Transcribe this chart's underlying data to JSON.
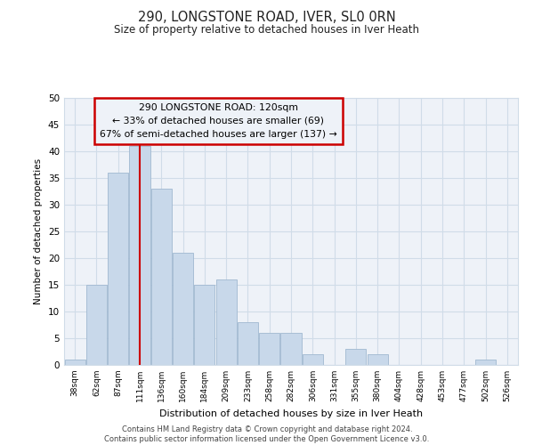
{
  "title": "290, LONGSTONE ROAD, IVER, SL0 0RN",
  "subtitle": "Size of property relative to detached houses in Iver Heath",
  "xlabel": "Distribution of detached houses by size in Iver Heath",
  "ylabel": "Number of detached properties",
  "categories": [
    "38sqm",
    "62sqm",
    "87sqm",
    "111sqm",
    "136sqm",
    "160sqm",
    "184sqm",
    "209sqm",
    "233sqm",
    "258sqm",
    "282sqm",
    "306sqm",
    "331sqm",
    "355sqm",
    "380sqm",
    "404sqm",
    "428sqm",
    "453sqm",
    "477sqm",
    "502sqm",
    "526sqm"
  ],
  "values": [
    1,
    15,
    36,
    41,
    33,
    21,
    15,
    16,
    8,
    6,
    6,
    2,
    0,
    3,
    2,
    0,
    0,
    0,
    0,
    1,
    0
  ],
  "bar_color": "#c8d8ea",
  "bar_edge_color": "#a0b8d0",
  "grid_color": "#d0dce8",
  "background_color": "#ffffff",
  "plot_bg_color": "#eef2f8",
  "vline_index": 3,
  "vline_color": "#cc0000",
  "annotation_line1": "290 LONGSTONE ROAD: 120sqm",
  "annotation_line2": "← 33% of detached houses are smaller (69)",
  "annotation_line3": "67% of semi-detached houses are larger (137) →",
  "annotation_box_edgecolor": "#cc0000",
  "ylim": [
    0,
    50
  ],
  "yticks": [
    0,
    5,
    10,
    15,
    20,
    25,
    30,
    35,
    40,
    45,
    50
  ],
  "footer_line1": "Contains HM Land Registry data © Crown copyright and database right 2024.",
  "footer_line2": "Contains public sector information licensed under the Open Government Licence v3.0."
}
